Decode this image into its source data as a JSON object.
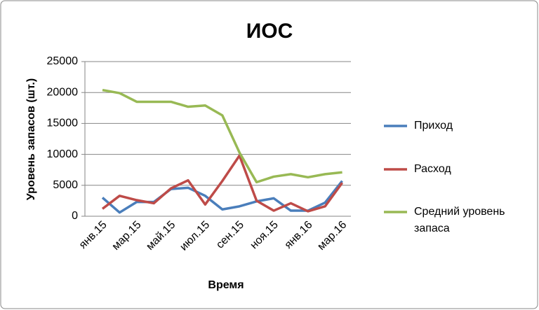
{
  "chart_data": {
    "type": "line",
    "title": "ИОС",
    "x_label": "Время",
    "y_label": "Уровень запасов (шт.)",
    "categories": [
      "янв.15",
      null,
      "мар.15",
      null,
      "май.15",
      null,
      "июл.15",
      null,
      "сен.15",
      null,
      "ноя.15",
      null,
      "янв.16",
      null,
      "мар.16"
    ],
    "series": [
      {
        "name": "Приход",
        "color": "#4a7ebb",
        "values": [
          3000,
          600,
          2300,
          2300,
          4400,
          4600,
          3300,
          1100,
          1600,
          2400,
          2900,
          900,
          900,
          2200,
          5700
        ]
      },
      {
        "name": "Расход",
        "color": "#be4b48",
        "values": [
          1200,
          3300,
          2600,
          2100,
          4500,
          5800,
          1900,
          5700,
          9800,
          2500,
          900,
          2100,
          800,
          1600,
          5400
        ]
      },
      {
        "name": "Средний уровень запаса",
        "color": "#98b954",
        "values": [
          20400,
          19900,
          18500,
          18500,
          18500,
          17700,
          17900,
          16300,
          10300,
          5500,
          6400,
          6800,
          6300,
          6800,
          7100
        ]
      }
    ],
    "ylim": [
      0,
      25000
    ],
    "yticks": [
      0,
      5000,
      10000,
      15000,
      20000,
      25000
    ],
    "grid": true,
    "legend": "right"
  }
}
